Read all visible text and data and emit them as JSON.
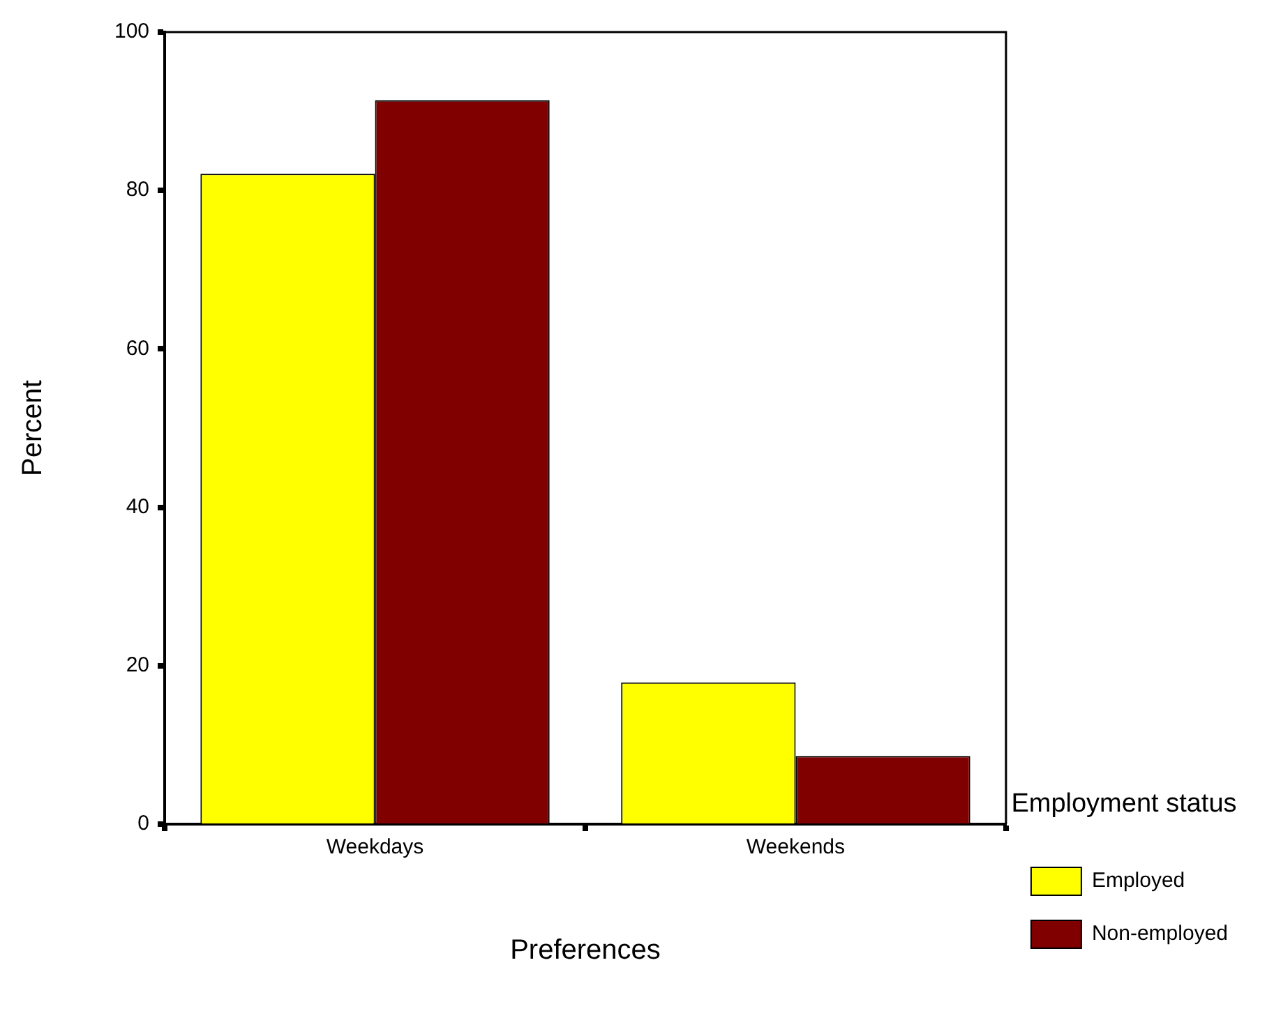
{
  "chart_data": {
    "type": "bar",
    "xlabel": "Preferences",
    "ylabel": "Percent",
    "legend_title": "Employment status",
    "legend": "right",
    "categories": [
      "Weekdays",
      "Weekends"
    ],
    "series": [
      {
        "name": "Employed",
        "color": "#ffff00",
        "values": [
          82.1,
          17.9
        ]
      },
      {
        "name": "Non-employed",
        "color": "#800000",
        "values": [
          91.4,
          8.6
        ]
      }
    ],
    "ylim": [
      0,
      100
    ],
    "yticks": [
      0,
      20,
      40,
      60,
      80,
      100
    ]
  }
}
